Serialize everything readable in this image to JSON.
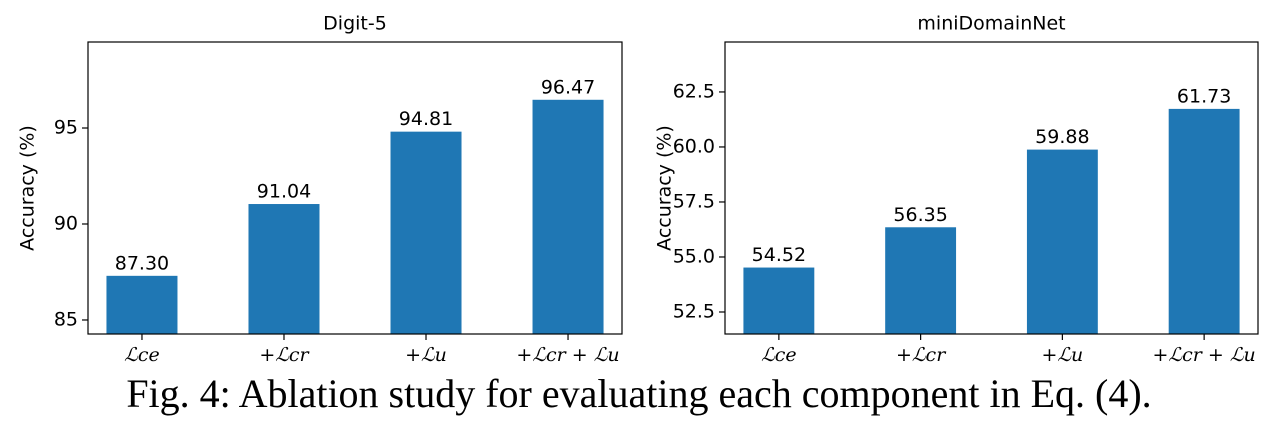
{
  "chart_data": [
    {
      "type": "bar",
      "title": "Digit-5",
      "y_label": "Accuracy (%)",
      "categories": [
        "ℒce",
        "+ℒcr",
        "+ℒu",
        "+ℒcr + ℒu"
      ],
      "values": [
        87.3,
        91.04,
        94.81,
        96.47
      ],
      "value_labels": [
        "87.30",
        "91.04",
        "94.81",
        "96.47"
      ],
      "color": "#1f77b4",
      "ylim": [
        84.27,
        99.48
      ],
      "yticks": [
        85,
        90,
        95
      ]
    },
    {
      "type": "bar",
      "title": "miniDomainNet",
      "y_label": "Accuracy (%)",
      "categories": [
        "ℒce",
        "+ℒcr",
        "+ℒu",
        "+ℒcr + ℒu"
      ],
      "values": [
        54.52,
        56.35,
        59.88,
        61.73
      ],
      "value_labels": [
        "54.52",
        "56.35",
        "59.88",
        "61.73"
      ],
      "color": "#1f77b4",
      "ylim": [
        51.5,
        64.77
      ],
      "yticks": [
        52.5,
        {
          "value": 55,
          "label": "55.0"
        },
        57.5,
        {
          "value": 60,
          "label": "60.0"
        },
        62.5
      ]
    }
  ],
  "caption": "Fig. 4: Ablation study for evaluating each component in Eq. (4)."
}
